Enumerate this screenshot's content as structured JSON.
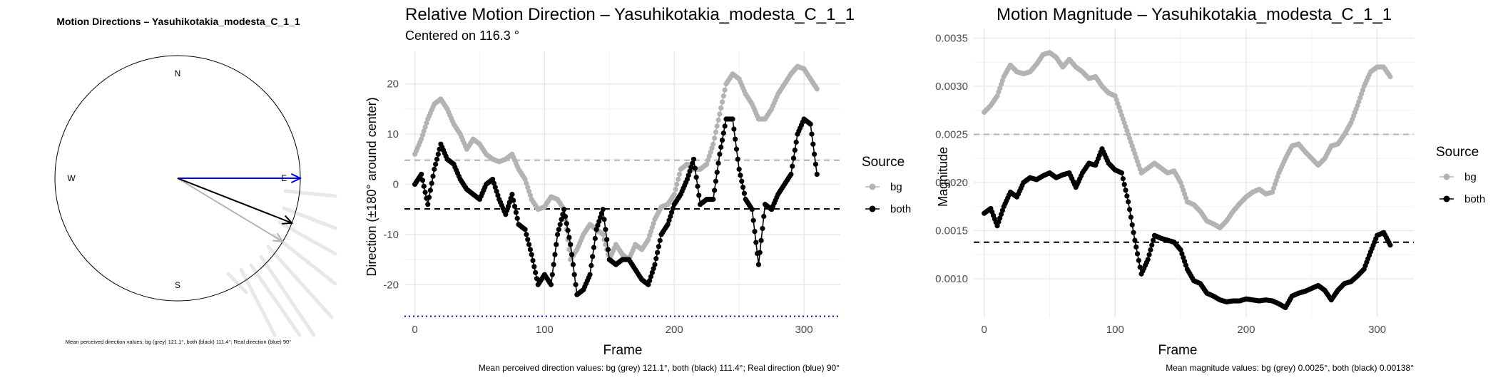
{
  "chart_data": [
    {
      "type": "compass",
      "title": "Motion Directions – Yasuhikotakia_modesta_C_1_1",
      "compass_labels": {
        "n": "N",
        "e": "E",
        "s": "S",
        "w": "W"
      },
      "directions_deg": {
        "bg": 121.1,
        "both": 111.4,
        "real": 90
      },
      "series_colors": {
        "bg": "#b3b3b3",
        "both": "#000000",
        "real": "#0000ff"
      },
      "caption": "Mean perceived direction values: bg (grey) 121.1°, both (black) 111.4°; Real direction (blue) 90°"
    },
    {
      "type": "line",
      "title": "Relative Motion Direction – Yasuhikotakia_modesta_C_1_1",
      "subtitle": "Centered on  116.3 °",
      "xlabel": "Frame",
      "ylabel": "Direction (±180° around center)",
      "xlim": [
        -8,
        328
      ],
      "ylim": [
        -26.5,
        26.5
      ],
      "x_ticks": [
        0,
        100,
        200,
        300
      ],
      "y_ticks": [
        -20,
        -10,
        0,
        10,
        20
      ],
      "legend_title": "Source",
      "series": [
        {
          "name": "bg",
          "color": "#b3b3b3",
          "x": [
            0,
            5,
            10,
            15,
            20,
            25,
            30,
            35,
            40,
            45,
            50,
            55,
            60,
            65,
            70,
            75,
            80,
            85,
            90,
            95,
            100,
            105,
            110,
            115,
            120,
            125,
            130,
            135,
            140,
            145,
            150,
            155,
            160,
            165,
            170,
            175,
            180,
            185,
            190,
            195,
            200,
            205,
            210,
            215,
            220,
            225,
            230,
            235,
            240,
            245,
            250,
            255,
            260,
            265,
            270,
            275,
            280,
            285,
            290,
            295,
            300,
            305,
            310
          ],
          "y": [
            6,
            9,
            13,
            16,
            17,
            15,
            12,
            10,
            7,
            9,
            8,
            6,
            5,
            4.5,
            5,
            6,
            3,
            1,
            -3,
            -5,
            -4.5,
            -2.5,
            -3,
            -5,
            -15,
            -13,
            -10,
            -8,
            -9,
            -10,
            -15,
            -12,
            -14,
            -15,
            -12,
            -13,
            -11,
            -7,
            -4.5,
            -4,
            -2,
            3,
            4,
            3,
            3,
            4,
            8,
            14,
            20,
            22,
            21,
            18,
            16,
            13,
            13,
            15,
            18,
            20,
            22,
            23.5,
            23,
            21,
            19
          ]
        },
        {
          "name": "both",
          "color": "#000000",
          "x": [
            0,
            5,
            10,
            15,
            20,
            25,
            30,
            35,
            40,
            45,
            50,
            55,
            60,
            65,
            70,
            75,
            80,
            85,
            90,
            95,
            100,
            105,
            110,
            115,
            120,
            125,
            130,
            135,
            140,
            145,
            150,
            155,
            160,
            165,
            170,
            175,
            180,
            185,
            190,
            195,
            200,
            205,
            210,
            215,
            220,
            225,
            230,
            235,
            240,
            245,
            250,
            255,
            260,
            265,
            270,
            275,
            280,
            285,
            290,
            295,
            300,
            305,
            310
          ],
          "y": [
            0,
            2,
            -4,
            3,
            8,
            5,
            4,
            1,
            -1,
            -2,
            -3,
            0,
            1,
            -3,
            -6,
            -2,
            -8,
            -9,
            -14,
            -20,
            -18,
            -20,
            -10,
            -5,
            -12,
            -22,
            -21,
            -18,
            -9,
            -5,
            -15,
            -16,
            -15,
            -15,
            -17,
            -19,
            -20,
            -16,
            -10,
            -8,
            -4,
            -2,
            1,
            5,
            -4,
            -3,
            -3,
            6,
            13,
            13,
            3,
            -3,
            -5,
            -16,
            -4,
            -5,
            -2,
            0,
            2,
            10,
            13,
            12,
            2
          ]
        }
      ],
      "hlines": [
        {
          "name": "bg-mean",
          "y": 4.8,
          "color": "#b3b3b3",
          "style": "dashed"
        },
        {
          "name": "both-mean",
          "y": -4.9,
          "color": "#000000",
          "style": "dashed"
        },
        {
          "name": "real",
          "y": -26.3,
          "color": "#0000ff",
          "style": "dotted"
        }
      ],
      "caption": "Mean perceived direction values: bg (grey) 121.1°, both (black) 111.4°; Real direction (blue) 90°"
    },
    {
      "type": "line",
      "title": "Motion Magnitude – Yasuhikotakia_modesta_C_1_1",
      "xlabel": "Frame",
      "ylabel": "Magnitude",
      "xlim": [
        -8,
        328
      ],
      "ylim": [
        0.0006,
        0.0036
      ],
      "x_ticks": [
        0,
        100,
        200,
        300
      ],
      "y_ticks": [
        0.001,
        0.0015,
        0.002,
        0.0025,
        0.003,
        0.0035
      ],
      "y_tick_labels": [
        "0.0010",
        "0.0015",
        "0.0020",
        "0.0025",
        "0.0030",
        "0.0035"
      ],
      "legend_title": "Source",
      "series": [
        {
          "name": "bg",
          "color": "#b3b3b3",
          "x": [
            0,
            5,
            10,
            15,
            20,
            25,
            30,
            35,
            40,
            45,
            50,
            55,
            60,
            65,
            70,
            75,
            80,
            85,
            90,
            95,
            100,
            105,
            110,
            115,
            120,
            125,
            130,
            135,
            140,
            145,
            150,
            155,
            160,
            165,
            170,
            175,
            180,
            185,
            190,
            195,
            200,
            205,
            210,
            215,
            220,
            225,
            230,
            235,
            240,
            245,
            250,
            255,
            260,
            265,
            270,
            275,
            280,
            285,
            290,
            295,
            300,
            305,
            310
          ],
          "y": [
            0.00273,
            0.0028,
            0.0029,
            0.0031,
            0.00322,
            0.00315,
            0.00313,
            0.00315,
            0.00323,
            0.00333,
            0.00335,
            0.0033,
            0.0032,
            0.00328,
            0.0032,
            0.00315,
            0.00308,
            0.0031,
            0.003,
            0.00293,
            0.0029,
            0.0027,
            0.0025,
            0.0023,
            0.0021,
            0.00215,
            0.0022,
            0.00215,
            0.0021,
            0.00212,
            0.002,
            0.0018,
            0.00177,
            0.0017,
            0.0016,
            0.00157,
            0.00153,
            0.0016,
            0.0017,
            0.00178,
            0.00185,
            0.0019,
            0.00193,
            0.00188,
            0.0019,
            0.0021,
            0.00225,
            0.00238,
            0.0024,
            0.00232,
            0.00225,
            0.00218,
            0.00225,
            0.00238,
            0.0024,
            0.0025,
            0.00262,
            0.0028,
            0.003,
            0.00315,
            0.0032,
            0.0032,
            0.0031
          ]
        },
        {
          "name": "both",
          "color": "#000000",
          "x": [
            0,
            5,
            10,
            15,
            20,
            25,
            30,
            35,
            40,
            45,
            50,
            55,
            60,
            65,
            70,
            75,
            80,
            85,
            90,
            95,
            100,
            105,
            110,
            115,
            120,
            125,
            130,
            135,
            140,
            145,
            150,
            155,
            160,
            165,
            170,
            175,
            180,
            185,
            190,
            195,
            200,
            205,
            210,
            215,
            220,
            225,
            230,
            235,
            240,
            245,
            250,
            255,
            260,
            265,
            270,
            275,
            280,
            285,
            290,
            295,
            300,
            305,
            310
          ],
          "y": [
            0.00168,
            0.00173,
            0.00155,
            0.00175,
            0.0019,
            0.00185,
            0.002,
            0.00205,
            0.00203,
            0.00207,
            0.0021,
            0.00205,
            0.00208,
            0.0021,
            0.00195,
            0.0021,
            0.0022,
            0.00218,
            0.00235,
            0.0022,
            0.00213,
            0.0021,
            0.0018,
            0.0014,
            0.00105,
            0.0012,
            0.00145,
            0.00142,
            0.0014,
            0.00138,
            0.0013,
            0.0011,
            0.00098,
            0.00095,
            0.00085,
            0.00082,
            0.00078,
            0.00076,
            0.00077,
            0.00077,
            0.00079,
            0.00078,
            0.00077,
            0.00078,
            0.00077,
            0.00074,
            0.0007,
            0.00082,
            0.00085,
            0.00087,
            0.0009,
            0.00093,
            0.00088,
            0.00078,
            0.00088,
            0.00095,
            0.00097,
            0.00103,
            0.0011,
            0.00128,
            0.00145,
            0.00148,
            0.00135
          ]
        }
      ],
      "hlines": [
        {
          "name": "bg-mean",
          "y": 0.0025,
          "color": "#b3b3b3",
          "style": "dashed"
        },
        {
          "name": "both-mean",
          "y": 0.00138,
          "color": "#000000",
          "style": "dashed"
        }
      ],
      "caption": "Mean magnitude values: bg (grey) 0.0025°, both (black) 0.00138°"
    }
  ]
}
